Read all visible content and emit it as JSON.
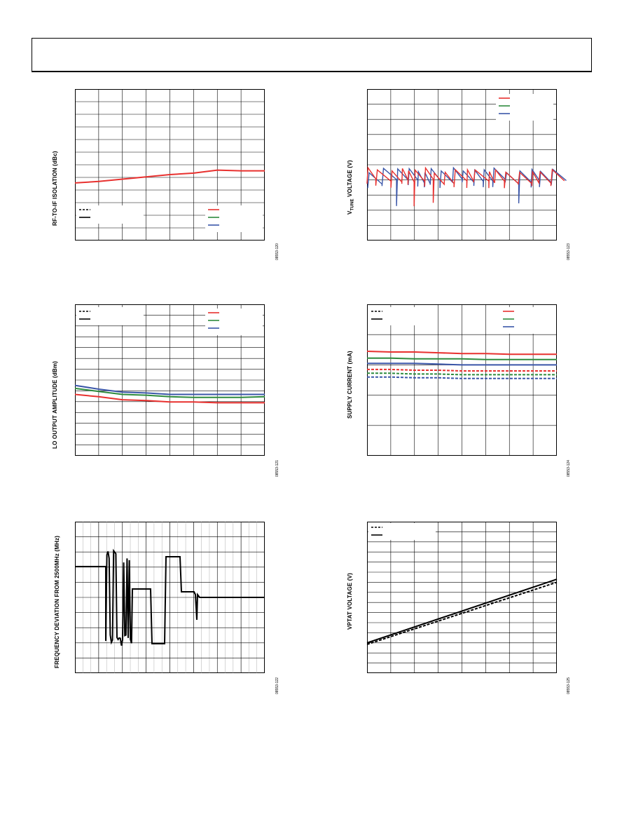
{
  "colors": {
    "red": "#e8312f",
    "green": "#2e8b3e",
    "blue": "#3a56a8",
    "black": "#000000"
  },
  "chart_data": [
    {
      "id": "rf-if-isolation",
      "type": "line",
      "ylabel": "RF-TO-IF ISOLATION (dBc)",
      "figure_id": "08553-120",
      "grid": true,
      "legend": "bottom",
      "x": [
        0,
        1,
        2,
        3,
        4,
        5,
        6,
        7,
        8
      ],
      "series": [
        {
          "color": "red",
          "style": "solid",
          "values": [
            0.38,
            0.39,
            0.405,
            0.42,
            0.435,
            0.445,
            0.465,
            0.46,
            0.46
          ]
        }
      ]
    },
    {
      "id": "vtune-voltage",
      "type": "line",
      "ylabel_main": "V",
      "ylabel_sub": "TUNE",
      "ylabel_rest": " VOLTAGE (V)",
      "figure_id": "08553-123",
      "grid": true,
      "legend": "top-right",
      "series": [
        {
          "color": "blue",
          "style": "sawtooth"
        },
        {
          "color": "red",
          "style": "sawtooth"
        }
      ]
    },
    {
      "id": "lo-output-amplitude",
      "type": "line",
      "ylabel": "LO OUTPUT AMPLITUDE (dBm)",
      "figure_id": "08553-121",
      "grid": true,
      "legend": "top",
      "x": [
        0,
        1,
        2,
        3,
        4,
        5,
        6,
        7,
        8
      ],
      "series": [
        {
          "color": "blue",
          "style": "solid",
          "values": [
            0.465,
            0.44,
            0.42,
            0.415,
            0.405,
            0.405,
            0.405,
            0.405,
            0.405
          ]
        },
        {
          "color": "green",
          "style": "solid",
          "values": [
            0.445,
            0.425,
            0.405,
            0.4,
            0.39,
            0.385,
            0.385,
            0.385,
            0.39
          ]
        },
        {
          "color": "red",
          "style": "solid",
          "values": [
            0.405,
            0.39,
            0.37,
            0.365,
            0.355,
            0.355,
            0.35,
            0.35,
            0.35
          ]
        }
      ]
    },
    {
      "id": "supply-current",
      "type": "line",
      "ylabel": "SUPPLY CURRENT (mA)",
      "figure_id": "08553-124",
      "grid": true,
      "legend": "top",
      "x": [
        0,
        1,
        2,
        3,
        4,
        5,
        6,
        7,
        8
      ],
      "series": [
        {
          "color": "red",
          "style": "solid",
          "values": [
            0.69,
            0.685,
            0.685,
            0.68,
            0.675,
            0.675,
            0.67,
            0.67,
            0.67
          ]
        },
        {
          "color": "green",
          "style": "solid",
          "values": [
            0.645,
            0.645,
            0.64,
            0.64,
            0.64,
            0.635,
            0.635,
            0.635,
            0.635
          ]
        },
        {
          "color": "blue",
          "style": "solid",
          "values": [
            0.61,
            0.61,
            0.61,
            0.605,
            0.6,
            0.6,
            0.6,
            0.6,
            0.6
          ]
        },
        {
          "color": "red",
          "style": "dashed",
          "values": [
            0.57,
            0.57,
            0.565,
            0.565,
            0.56,
            0.56,
            0.56,
            0.56,
            0.56
          ]
        },
        {
          "color": "green",
          "style": "dashed",
          "values": [
            0.545,
            0.545,
            0.54,
            0.54,
            0.535,
            0.535,
            0.535,
            0.535,
            0.535
          ]
        },
        {
          "color": "blue",
          "style": "dashed",
          "values": [
            0.52,
            0.52,
            0.515,
            0.515,
            0.51,
            0.51,
            0.51,
            0.51,
            0.51
          ]
        }
      ]
    },
    {
      "id": "frequency-deviation",
      "type": "line",
      "ylabel": "FREQUENCY DEVIATION FROM 2500MHz (MHz)",
      "figure_id": "08553-122",
      "grid": true,
      "series": [
        {
          "color": "black",
          "style": "step"
        }
      ]
    },
    {
      "id": "vptat-voltage",
      "type": "line",
      "ylabel": "VPTAT VOLTAGE (V)",
      "figure_id": "08553-125",
      "grid": true,
      "legend": "top-left",
      "x": [
        0,
        1
      ],
      "series": [
        {
          "color": "black",
          "style": "solid",
          "values": [
            0.2,
            0.62
          ]
        },
        {
          "color": "black",
          "style": "dashed",
          "values": [
            0.19,
            0.6
          ]
        }
      ]
    }
  ]
}
